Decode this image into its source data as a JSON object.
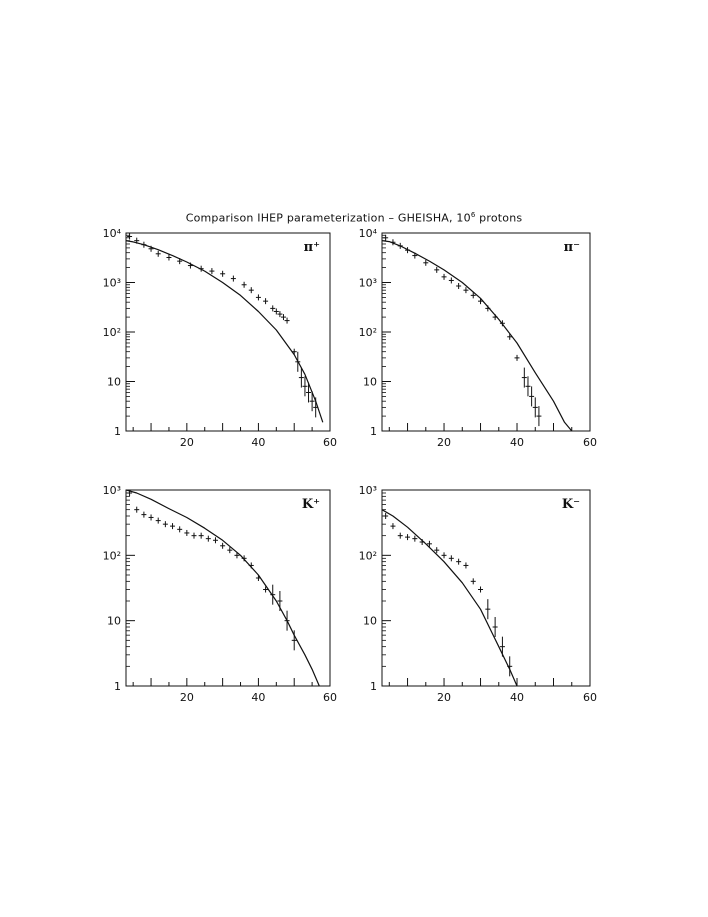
{
  "figure": {
    "title_prefix": "Comparison IHEP parameterization – GHEISHA, 10",
    "title_exponent": "6",
    "title_suffix": " protons"
  },
  "chart_data": [
    {
      "type": "line",
      "panel_label": "π⁺",
      "xlim": [
        3,
        60
      ],
      "ylim": [
        1,
        10000
      ],
      "y_scale": "log",
      "x_tick_labels": [
        "20",
        "40",
        "60"
      ],
      "y_tick_labels": [
        "1",
        "10",
        "10²",
        "10³",
        "10⁴"
      ],
      "series": [
        {
          "style": "line",
          "x": [
            3,
            5,
            8,
            12,
            16,
            20,
            25,
            30,
            35,
            40,
            45,
            50,
            53,
            56,
            58
          ],
          "y": [
            7000,
            6600,
            5800,
            4600,
            3500,
            2600,
            1700,
            1000,
            550,
            260,
            110,
            35,
            14,
            4,
            1.5
          ]
        },
        {
          "style": "markers",
          "x": [
            4,
            6,
            8,
            10,
            12,
            15,
            18,
            21,
            24,
            27,
            30,
            33,
            36,
            38,
            40,
            42,
            44,
            45,
            46,
            47,
            48,
            50,
            51,
            52,
            53,
            54,
            55,
            56
          ],
          "y": [
            8500,
            7000,
            5800,
            4800,
            3800,
            3200,
            2700,
            2200,
            1900,
            1700,
            1500,
            1200,
            900,
            700,
            500,
            420,
            300,
            260,
            230,
            200,
            170,
            40,
            25,
            12,
            8,
            6,
            4,
            3
          ]
        }
      ]
    },
    {
      "type": "line",
      "panel_label": "π⁻",
      "xlim": [
        3,
        60
      ],
      "ylim": [
        1,
        10000
      ],
      "y_scale": "log",
      "x_tick_labels": [
        "20",
        "40",
        "60"
      ],
      "y_tick_labels": [
        "1",
        "10",
        "10²",
        "10³",
        "10⁴"
      ],
      "series": [
        {
          "style": "line",
          "x": [
            3,
            5,
            8,
            12,
            16,
            20,
            25,
            30,
            35,
            40,
            45,
            50,
            53,
            55
          ],
          "y": [
            7000,
            6700,
            5500,
            3900,
            2700,
            1800,
            1000,
            480,
            180,
            60,
            15,
            4,
            1.5,
            1
          ]
        },
        {
          "style": "markers",
          "x": [
            4,
            6,
            8,
            10,
            12,
            15,
            18,
            20,
            22,
            24,
            26,
            28,
            30,
            32,
            34,
            36,
            38,
            40,
            42,
            43,
            44,
            45,
            46
          ],
          "y": [
            8000,
            6500,
            5500,
            4500,
            3500,
            2500,
            1800,
            1300,
            1100,
            850,
            700,
            550,
            420,
            300,
            200,
            150,
            80,
            30,
            12,
            8,
            5,
            3,
            2
          ]
        }
      ]
    },
    {
      "type": "line",
      "panel_label": "K⁺",
      "xlim": [
        3,
        60
      ],
      "ylim": [
        1,
        1000
      ],
      "y_scale": "log",
      "x_tick_labels": [
        "20",
        "40",
        "60"
      ],
      "y_tick_labels": [
        "1",
        "10",
        "10²",
        "10³"
      ],
      "series": [
        {
          "style": "line",
          "x": [
            3,
            6,
            10,
            15,
            20,
            25,
            30,
            35,
            40,
            45,
            48,
            50,
            53,
            55,
            57
          ],
          "y": [
            1000,
            900,
            720,
            520,
            380,
            260,
            170,
            100,
            50,
            20,
            10,
            6,
            3,
            1.8,
            1
          ]
        },
        {
          "style": "markers",
          "x": [
            4,
            6,
            8,
            10,
            12,
            14,
            16,
            18,
            20,
            22,
            24,
            26,
            28,
            30,
            32,
            34,
            36,
            38,
            40,
            42,
            44,
            46,
            48,
            50
          ],
          "y": [
            900,
            500,
            420,
            380,
            340,
            300,
            280,
            250,
            220,
            200,
            200,
            180,
            170,
            140,
            120,
            100,
            90,
            70,
            45,
            30,
            25,
            20,
            10,
            5
          ]
        }
      ]
    },
    {
      "type": "line",
      "panel_label": "K⁻",
      "xlim": [
        3,
        60
      ],
      "ylim": [
        1,
        1000
      ],
      "y_scale": "log",
      "x_tick_labels": [
        "20",
        "40",
        "60"
      ],
      "y_tick_labels": [
        "1",
        "10",
        "10²",
        "10³"
      ],
      "series": [
        {
          "style": "line",
          "x": [
            3,
            6,
            10,
            15,
            20,
            25,
            30,
            35,
            38,
            40
          ],
          "y": [
            500,
            400,
            270,
            150,
            80,
            38,
            15,
            4,
            1.8,
            1
          ]
        },
        {
          "style": "markers",
          "x": [
            4,
            6,
            8,
            10,
            12,
            14,
            16,
            18,
            20,
            22,
            24,
            26,
            28,
            30,
            32,
            34,
            36,
            38
          ],
          "y": [
            400,
            280,
            200,
            190,
            180,
            160,
            150,
            120,
            100,
            90,
            80,
            70,
            40,
            30,
            15,
            8,
            4,
            2
          ]
        }
      ]
    }
  ]
}
